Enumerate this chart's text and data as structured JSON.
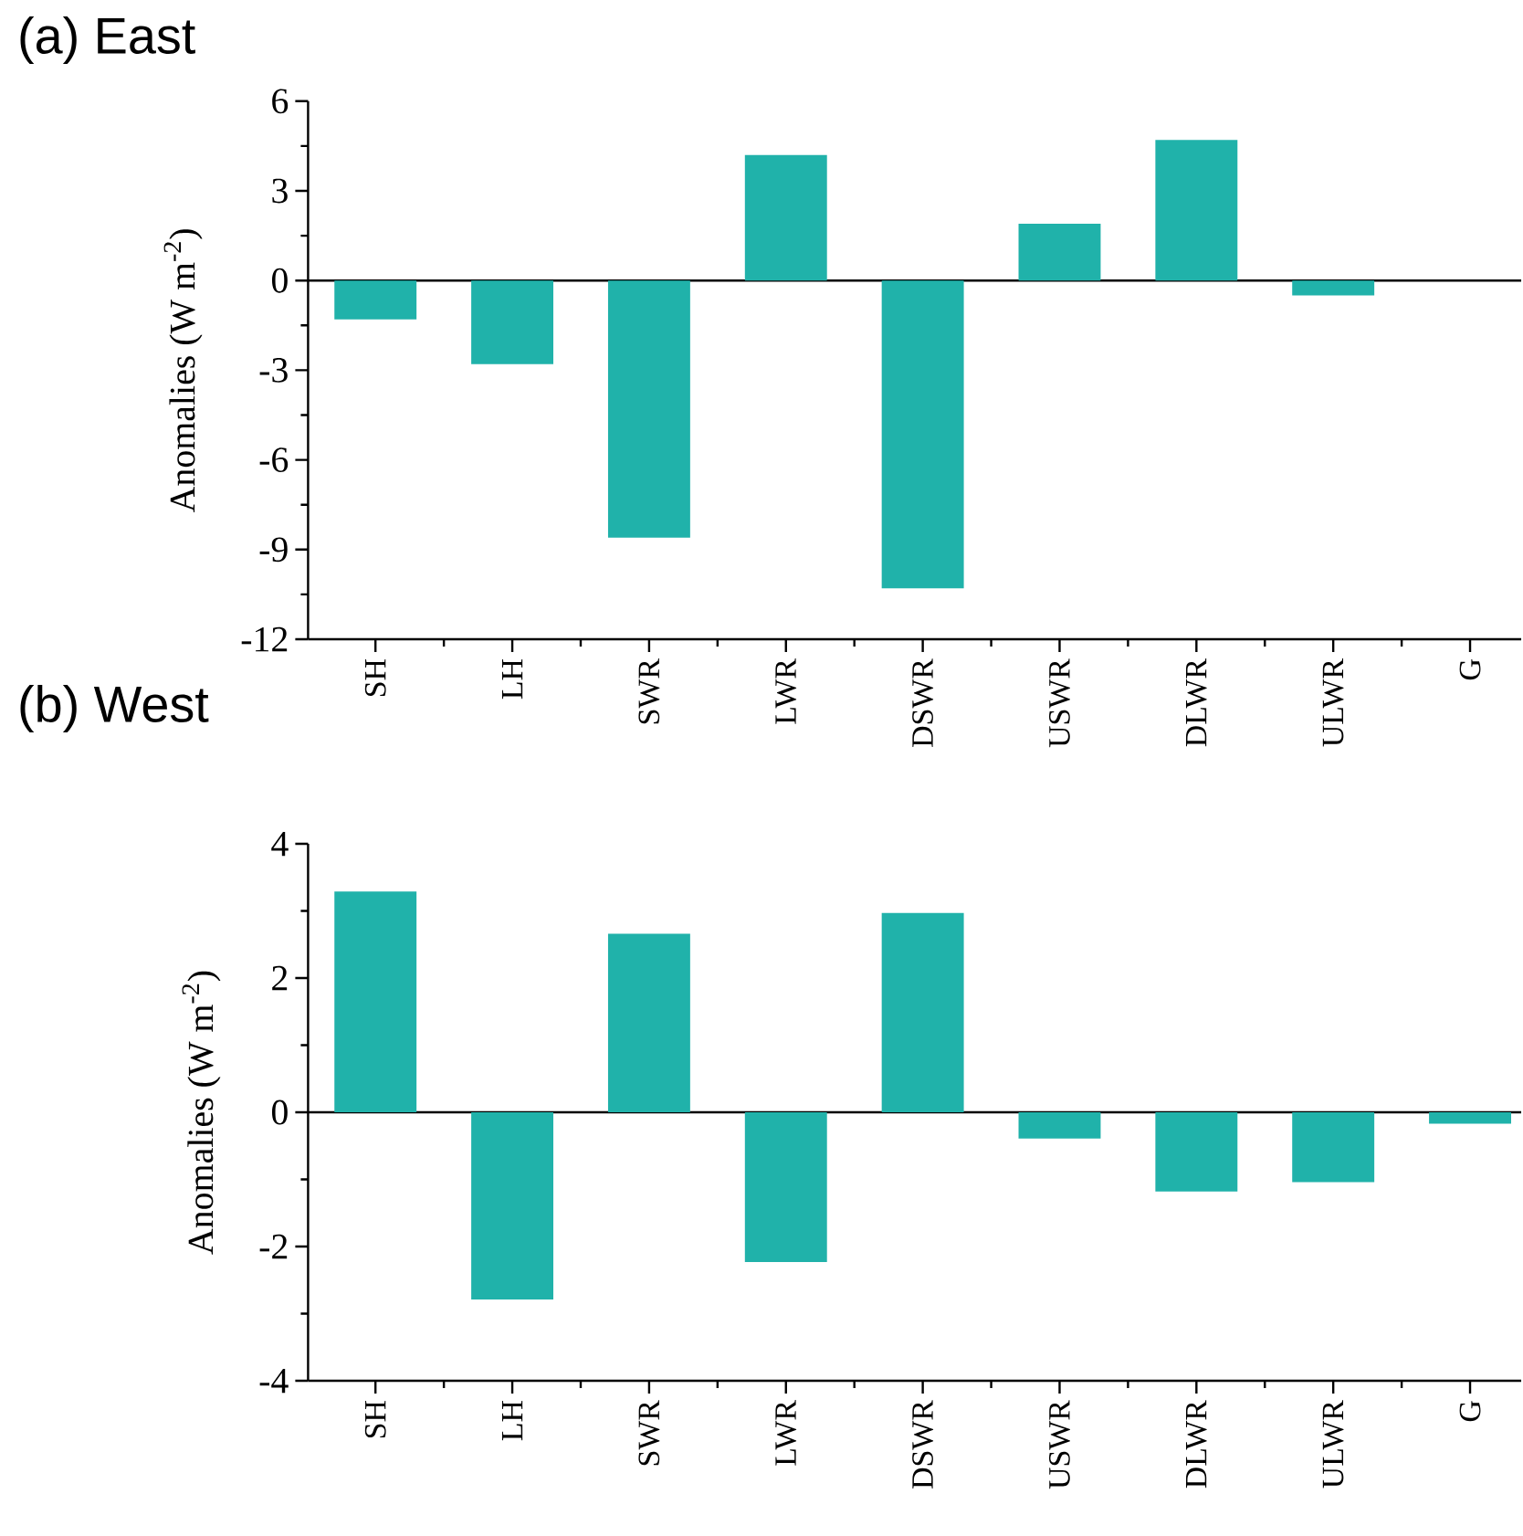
{
  "chart_data": [
    {
      "type": "bar",
      "title": "(a) East",
      "ylabel": "Anomalies (W m$^{-2}$)",
      "categories": [
        "SH",
        "LH",
        "SWR",
        "LWR",
        "DSWR",
        "USWR",
        "DLWR",
        "ULWR",
        "G"
      ],
      "values": [
        -1.3,
        -2.8,
        -8.6,
        4.2,
        -10.3,
        1.9,
        4.7,
        -0.5,
        0
      ],
      "color": "#20b2aa",
      "ylim": [
        -12,
        6
      ],
      "yticks": [
        -12,
        -9,
        -6,
        -3,
        0,
        3,
        6
      ]
    },
    {
      "type": "bar",
      "title": "(b) West",
      "ylabel": "Anomalies (W m$^{-2}$)",
      "categories": [
        "SH",
        "LH",
        "SWR",
        "LWR",
        "DSWR",
        "USWR",
        "DLWR",
        "ULWR",
        "G"
      ],
      "values": [
        3.29,
        -2.79,
        2.66,
        -2.23,
        2.97,
        -0.39,
        -1.18,
        -1.04,
        -0.17
      ],
      "color": "#20b2aa",
      "ylim": [
        -4,
        4
      ],
      "yticks": [
        -4,
        -2,
        0,
        2,
        4
      ]
    }
  ]
}
